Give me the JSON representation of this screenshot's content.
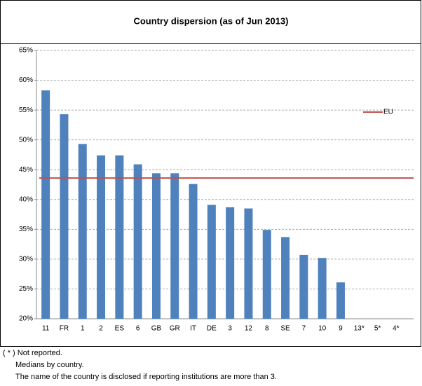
{
  "chart_data": {
    "type": "bar",
    "title": "Country dispersion (as of Jun 2013)",
    "categories": [
      "11",
      "FR",
      "1",
      "2",
      "ES",
      "6",
      "GB",
      "GR",
      "IT",
      "DE",
      "3",
      "12",
      "8",
      "SE",
      "7",
      "10",
      "9",
      "13*",
      "5*",
      "4*"
    ],
    "values": [
      58.3,
      54.3,
      49.3,
      47.4,
      47.4,
      45.9,
      44.4,
      44.4,
      42.6,
      39.1,
      38.7,
      38.5,
      34.9,
      33.7,
      30.7,
      30.2,
      26.1,
      null,
      null,
      null
    ],
    "color": "#4f81bd",
    "reference": {
      "name": "EU",
      "value": 43.6,
      "color": "#c0504d"
    },
    "ylim": [
      20,
      65
    ],
    "yticks": [
      {
        "value": 20,
        "label": "20%"
      },
      {
        "value": 25,
        "label": "25%"
      },
      {
        "value": 30,
        "label": "30%"
      },
      {
        "value": 35,
        "label": "35%"
      },
      {
        "value": 40,
        "label": "40%"
      },
      {
        "value": 45,
        "label": "45%"
      },
      {
        "value": 50,
        "label": "50%"
      },
      {
        "value": 55,
        "label": "55%"
      },
      {
        "value": 60,
        "label": "60%"
      },
      {
        "value": 65,
        "label": "65%"
      }
    ],
    "grid": true,
    "legend": "upper right"
  },
  "notes": [
    "( * ) Not reported.",
    "Medians by country.",
    "The name of the country is disclosed if reporting institutions are more than 3."
  ]
}
